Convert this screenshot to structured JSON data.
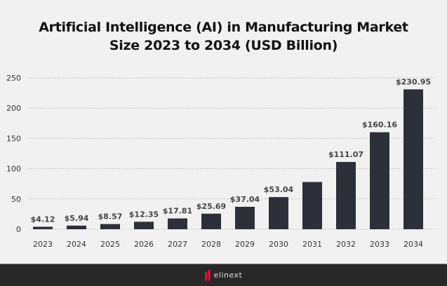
{
  "chart_data": {
    "type": "bar",
    "title": "Artificial Intelligence (AI) in Manufacturing Market Size 2023 to 2034 (USD Billion)",
    "title_lines": [
      "Artificial Intelligence (AI) in Manufacturing Market",
      "Size 2023 to 2034 (USD Billion)"
    ],
    "categories": [
      "2023",
      "2024",
      "2025",
      "2026",
      "2027",
      "2028",
      "2029",
      "2030",
      "2031",
      "2032",
      "2033",
      "2034"
    ],
    "values": [
      4.12,
      5.94,
      8.57,
      12.35,
      17.81,
      25.69,
      37.04,
      53.04,
      78,
      111.07,
      160.16,
      230.95
    ],
    "data_labels": [
      "$4.12",
      "$5.94",
      "$8.57",
      "$12.35",
      "$17.81",
      "$25.69",
      "$37.04",
      "$53.04",
      "",
      "$111.07",
      "$160.16",
      "$230.95"
    ],
    "xlabel": "",
    "ylabel": "",
    "ylim": [
      0,
      250
    ],
    "yticks": [
      "0",
      "50",
      "100",
      "150",
      "200",
      "250"
    ],
    "grid": true,
    "bar_color": "#2e3039",
    "background": "#f1f1f1"
  },
  "footer": {
    "brand": "elinext",
    "brand_color": "#e0103c"
  }
}
